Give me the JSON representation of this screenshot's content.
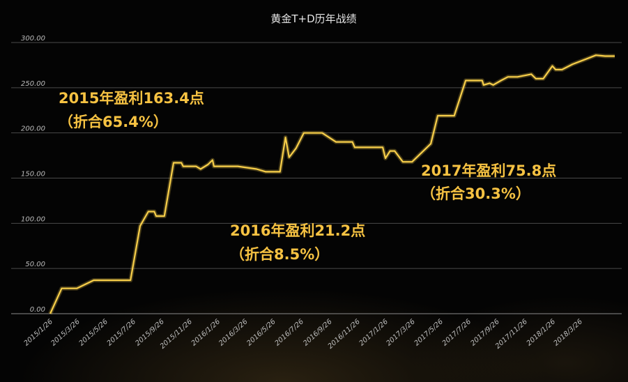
{
  "chart_data": {
    "type": "line",
    "title": "黄金T+D历年战绩",
    "xlabel": "",
    "ylabel": "",
    "ylim": [
      0,
      300
    ],
    "grid": true,
    "y_ticks": [
      "0.00",
      "50.00",
      "100.00",
      "150.00",
      "200.00",
      "250.00",
      "300.00"
    ],
    "x_ticks": [
      "2015/1/26",
      "2015/3/26",
      "2015/5/26",
      "2015/7/26",
      "2015/9/26",
      "2015/11/26",
      "2016/1/26",
      "2016/3/26",
      "2016/5/26",
      "2016/7/26",
      "2016/9/26",
      "2016/11/26",
      "2017/1/26",
      "2017/3/26",
      "2017/5/26",
      "2017/7/26",
      "2017/9/26",
      "2017/11/26",
      "2018/1/26",
      "2018/3/26"
    ],
    "line_color": "#f8cf4a",
    "series": [
      {
        "name": "",
        "points": [
          [
            "2015/1/26",
            0
          ],
          [
            "2015/2/20",
            28
          ],
          [
            "2015/3/25",
            28
          ],
          [
            "2015/5/1",
            37
          ],
          [
            "2015/6/15",
            37
          ],
          [
            "2015/7/20",
            37
          ],
          [
            "2015/8/10",
            97
          ],
          [
            "2015/8/28",
            113
          ],
          [
            "2015/9/10",
            113
          ],
          [
            "2015/9/14",
            108
          ],
          [
            "2015/10/2",
            108
          ],
          [
            "2015/10/22",
            167
          ],
          [
            "2015/11/8",
            167
          ],
          [
            "2015/11/12",
            163
          ],
          [
            "2015/12/10",
            163
          ],
          [
            "2015/12/20",
            160
          ],
          [
            "2016/1/5",
            165
          ],
          [
            "2016/1/15",
            170
          ],
          [
            "2016/1/18",
            163
          ],
          [
            "2016/2/20",
            163
          ],
          [
            "2016/3/10",
            163
          ],
          [
            "2016/4/20",
            160
          ],
          [
            "2016/5/10",
            157
          ],
          [
            "2016/6/10",
            157
          ],
          [
            "2016/6/22",
            195
          ],
          [
            "2016/6/30",
            173
          ],
          [
            "2016/7/15",
            183
          ],
          [
            "2016/8/1",
            200
          ],
          [
            "2016/9/10",
            200
          ],
          [
            "2016/10/10",
            190
          ],
          [
            "2016/11/15",
            190
          ],
          [
            "2016/11/20",
            184
          ],
          [
            "2017/1/5",
            184
          ],
          [
            "2017/1/20",
            184
          ],
          [
            "2017/1/26",
            172
          ],
          [
            "2017/2/5",
            180
          ],
          [
            "2017/2/15",
            180
          ],
          [
            "2017/3/5",
            168
          ],
          [
            "2017/3/25",
            168
          ],
          [
            "2017/5/5",
            188
          ],
          [
            "2017/5/20",
            219
          ],
          [
            "2017/6/25",
            219
          ],
          [
            "2017/7/20",
            258
          ],
          [
            "2017/8/25",
            258
          ],
          [
            "2017/8/28",
            253
          ],
          [
            "2017/9/10",
            255
          ],
          [
            "2017/9/18",
            253
          ],
          [
            "2017/10/5",
            258
          ],
          [
            "2017/10/20",
            262
          ],
          [
            "2017/11/10",
            262
          ],
          [
            "2017/12/10",
            265
          ],
          [
            "2017/12/20",
            260
          ],
          [
            "2018/1/5",
            260
          ],
          [
            "2018/1/25",
            274
          ],
          [
            "2018/2/1",
            270
          ],
          [
            "2018/2/15",
            270
          ],
          [
            "2018/3/10",
            276
          ],
          [
            "2018/4/10",
            282
          ],
          [
            "2018/4/30",
            286
          ],
          [
            "2018/5/20",
            285
          ],
          [
            "2018/6/10",
            285
          ]
        ]
      }
    ],
    "annotations": [
      {
        "lines": [
          "2015年盈利163.4点",
          "（折合65.4%）"
        ]
      },
      {
        "lines": [
          "2016年盈利21.2点",
          "（折合8.5%）"
        ]
      },
      {
        "lines": [
          "2017年盈利75.8点",
          "（折合30.3%）"
        ]
      }
    ]
  }
}
